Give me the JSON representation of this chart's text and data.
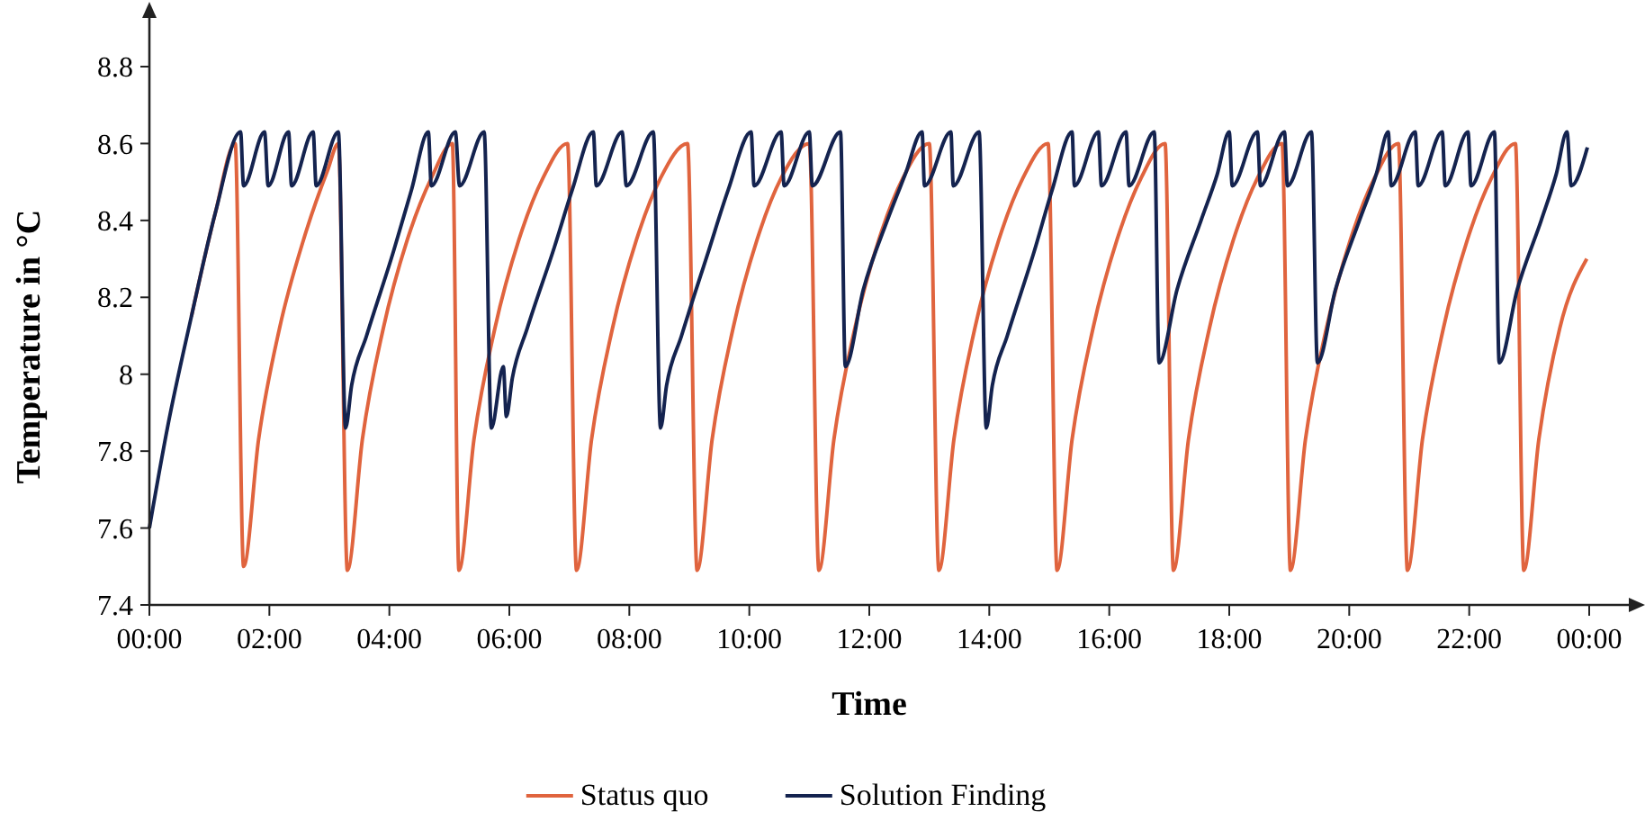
{
  "chart_data": {
    "type": "line",
    "xlabel": "Time",
    "ylabel": "Temperature in °C",
    "xlim": [
      0,
      24
    ],
    "xticks": [
      {
        "value": 0,
        "label": "00:00"
      },
      {
        "value": 2,
        "label": "02:00"
      },
      {
        "value": 4,
        "label": "04:00"
      },
      {
        "value": 6,
        "label": "06:00"
      },
      {
        "value": 8,
        "label": "08:00"
      },
      {
        "value": 10,
        "label": "10:00"
      },
      {
        "value": 12,
        "label": "12:00"
      },
      {
        "value": 14,
        "label": "14:00"
      },
      {
        "value": 16,
        "label": "16:00"
      },
      {
        "value": 18,
        "label": "18:00"
      },
      {
        "value": 20,
        "label": "20:00"
      },
      {
        "value": 22,
        "label": "22:00"
      },
      {
        "value": 24,
        "label": "00:00"
      }
    ],
    "ylim": [
      7.4,
      8.8
    ],
    "yticks": [
      7.4,
      7.6,
      7.8,
      8,
      8.2,
      8.4,
      8.6,
      8.8
    ],
    "grid": false,
    "legend": "bottom",
    "marker": "none",
    "line_style": "solid",
    "series": [
      {
        "name": "Status quo",
        "color": "#e0643e",
        "x": [
          0.7,
          1.1,
          1.43,
          1.57,
          1.82,
          2.17,
          2.57,
          2.97,
          3.15,
          3.3,
          3.55,
          3.9,
          4.3,
          4.7,
          5.05,
          5.16,
          5.41,
          5.76,
          6.16,
          6.56,
          6.97,
          7.12,
          7.37,
          7.72,
          8.12,
          8.52,
          8.97,
          9.13,
          9.38,
          9.73,
          10.13,
          10.53,
          11,
          11.16,
          11.41,
          11.76,
          12.16,
          12.56,
          13,
          13.16,
          13.41,
          13.76,
          14.16,
          14.56,
          14.98,
          15.13,
          15.38,
          15.73,
          16.13,
          16.53,
          16.93,
          17.07,
          17.32,
          17.67,
          18.07,
          18.47,
          18.88,
          19.02,
          19.27,
          19.62,
          20.02,
          20.42,
          20.82,
          20.97,
          21.22,
          21.57,
          21.97,
          22.37,
          22.77,
          22.91,
          23.16,
          23.51,
          23.96
        ],
        "values": [
          8.15,
          8.42,
          8.6,
          7.5,
          7.83,
          8.12,
          8.35,
          8.53,
          8.6,
          7.49,
          7.83,
          8.12,
          8.35,
          8.51,
          8.6,
          7.49,
          7.83,
          8.12,
          8.35,
          8.51,
          8.6,
          7.49,
          7.83,
          8.12,
          8.35,
          8.51,
          8.6,
          7.49,
          7.83,
          8.12,
          8.35,
          8.51,
          8.6,
          7.49,
          7.83,
          8.12,
          8.35,
          8.51,
          8.6,
          7.49,
          7.83,
          8.12,
          8.35,
          8.51,
          8.6,
          7.49,
          7.83,
          8.12,
          8.35,
          8.51,
          8.6,
          7.49,
          7.83,
          8.12,
          8.35,
          8.51,
          8.6,
          7.49,
          7.83,
          8.12,
          8.35,
          8.51,
          8.6,
          7.49,
          7.83,
          8.12,
          8.35,
          8.51,
          8.6,
          7.49,
          7.83,
          8.12,
          8.3
        ]
      },
      {
        "name": "Solution Finding",
        "color": "#14234f",
        "x": [
          0,
          0.3,
          0.7,
          1.1,
          1.52,
          1.57,
          1.92,
          1.98,
          2.32,
          2.37,
          2.73,
          2.78,
          3.15,
          3.27,
          3.37,
          3.62,
          4.07,
          4.37,
          4.65,
          4.7,
          5.1,
          5.17,
          5.58,
          5.7,
          5.9,
          5.95,
          6.05,
          6.3,
          6.75,
          7.05,
          7.4,
          7.45,
          7.88,
          7.95,
          8.4,
          8.52,
          8.62,
          8.87,
          9.32,
          9.65,
          10.03,
          10.08,
          10.53,
          10.58,
          11,
          11.05,
          11.52,
          11.6,
          11.9,
          12.3,
          12.6,
          12.88,
          12.92,
          13.36,
          13.4,
          13.83,
          13.95,
          14.05,
          14.3,
          14.75,
          15.05,
          15.38,
          15.42,
          15.82,
          15.87,
          16.28,
          16.33,
          16.75,
          16.83,
          17.13,
          17.53,
          17.8,
          18,
          18.05,
          18.47,
          18.52,
          18.92,
          18.97,
          19.37,
          19.47,
          19.77,
          20.17,
          20.45,
          20.65,
          20.7,
          21.1,
          21.15,
          21.55,
          21.6,
          21.98,
          22.03,
          22.42,
          22.5,
          22.8,
          23.2,
          23.45,
          23.63,
          23.7,
          23.97
        ],
        "values": [
          7.6,
          7.86,
          8.15,
          8.42,
          8.63,
          8.49,
          8.63,
          8.49,
          8.63,
          8.49,
          8.63,
          8.49,
          8.63,
          7.86,
          7.97,
          8.1,
          8.32,
          8.48,
          8.63,
          8.49,
          8.63,
          8.49,
          8.63,
          7.86,
          8.02,
          7.89,
          7.99,
          8.12,
          8.33,
          8.48,
          8.63,
          8.49,
          8.63,
          8.49,
          8.63,
          7.86,
          7.97,
          8.1,
          8.32,
          8.48,
          8.63,
          8.49,
          8.63,
          8.49,
          8.63,
          8.49,
          8.63,
          8.02,
          8.22,
          8.4,
          8.52,
          8.63,
          8.49,
          8.63,
          8.49,
          8.63,
          7.86,
          7.97,
          8.1,
          8.32,
          8.48,
          8.63,
          8.49,
          8.63,
          8.49,
          8.63,
          8.49,
          8.63,
          8.03,
          8.22,
          8.4,
          8.52,
          8.63,
          8.49,
          8.63,
          8.49,
          8.63,
          8.49,
          8.63,
          8.03,
          8.22,
          8.4,
          8.52,
          8.63,
          8.49,
          8.63,
          8.49,
          8.63,
          8.49,
          8.63,
          8.49,
          8.63,
          8.03,
          8.22,
          8.4,
          8.52,
          8.63,
          8.49,
          8.59
        ]
      }
    ]
  }
}
